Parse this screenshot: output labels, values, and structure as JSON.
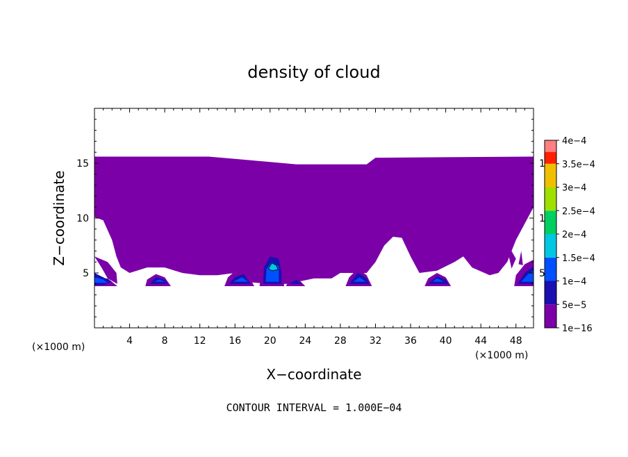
{
  "chart_data": {
    "type": "heatmap",
    "title": "density of cloud",
    "xlabel": "X−coordinate",
    "ylabel": "Z−coordinate",
    "x_unit": "(×1000 m)",
    "y_unit": "(×1000 m)",
    "xlim": [
      0,
      50
    ],
    "ylim": [
      0,
      20
    ],
    "x_ticks": [
      4,
      8,
      12,
      16,
      20,
      24,
      28,
      32,
      36,
      40,
      44,
      48
    ],
    "x_tick_labels": [
      "4",
      "8",
      "12",
      "16",
      "20",
      "24",
      "28",
      "32",
      "36",
      "40",
      "44",
      "48"
    ],
    "y_ticks": [
      5,
      10,
      15
    ],
    "y_tick_labels": [
      "5",
      "10",
      "15"
    ],
    "colorbar": {
      "levels": [
        1e-16,
        5e-05,
        0.0001,
        0.00015,
        0.0002,
        0.00025,
        0.0003,
        0.00035,
        0.0004
      ],
      "labels": [
        "1e−16",
        "5e−5",
        "1e−4",
        "1.5e−4",
        "2e−4",
        "2.5e−4",
        "3e−4",
        "3.5e−4",
        "4e−4"
      ],
      "colors": [
        "#7b00a8",
        "#1a0fb0",
        "#0050ff",
        "#00c8e0",
        "#00d060",
        "#a0e000",
        "#f0c000",
        "#ff2000",
        "#ff8080"
      ]
    },
    "contour_interval_text": "CONTOUR INTERVAL = 1.000E−04",
    "regions": [
      {
        "level": 0,
        "polygon": [
          [
            0,
            15.6
          ],
          [
            11,
            15.6
          ],
          [
            13,
            15.6
          ],
          [
            16,
            15.4
          ],
          [
            23,
            14.9
          ],
          [
            31,
            14.9
          ],
          [
            32,
            15.5
          ],
          [
            50,
            15.6
          ],
          [
            50,
            11
          ],
          [
            48,
            8
          ],
          [
            47,
            6
          ],
          [
            46,
            5
          ],
          [
            45,
            4.8
          ],
          [
            43,
            5.5
          ],
          [
            42,
            6.5
          ],
          [
            41,
            6
          ],
          [
            39,
            5.2
          ],
          [
            37,
            5
          ],
          [
            36,
            6.5
          ],
          [
            35,
            8.2
          ],
          [
            34,
            8.3
          ],
          [
            33,
            7.5
          ],
          [
            32,
            6
          ],
          [
            31,
            5
          ],
          [
            29,
            5
          ],
          [
            28,
            5
          ],
          [
            27,
            4.5
          ],
          [
            25,
            4.5
          ],
          [
            22,
            4
          ],
          [
            20,
            4
          ],
          [
            17,
            4.2
          ],
          [
            16,
            5
          ],
          [
            14,
            4.8
          ],
          [
            12,
            4.8
          ],
          [
            10,
            5
          ],
          [
            8,
            5.5
          ],
          [
            6,
            5.5
          ],
          [
            4,
            5
          ],
          [
            3,
            5.5
          ],
          [
            2.5,
            6.5
          ],
          [
            2,
            8
          ],
          [
            1,
            9.8
          ],
          [
            0,
            10.1
          ]
        ]
      },
      {
        "level": 0,
        "polygon": [
          [
            28.3,
            9.6
          ],
          [
            29.5,
            9.6
          ],
          [
            29.6,
            7
          ],
          [
            29,
            6
          ],
          [
            28,
            6
          ],
          [
            28,
            7
          ]
        ]
      },
      {
        "level": 0,
        "polygon": [
          [
            0,
            6.5
          ],
          [
            0.8,
            5.5
          ],
          [
            1.5,
            4.5
          ],
          [
            2.6,
            4
          ],
          [
            2.5,
            5
          ],
          [
            1.5,
            6
          ]
        ]
      },
      {
        "level": 0,
        "polygon": [
          [
            0,
            4
          ],
          [
            0.5,
            4.5
          ],
          [
            1.5,
            4.5
          ],
          [
            2.6,
            3.8
          ],
          [
            0,
            3.8
          ]
        ]
      },
      {
        "level": 0,
        "polygon": [
          [
            5.8,
            3.8
          ],
          [
            6,
            4.4
          ],
          [
            7,
            4.9
          ],
          [
            8,
            4.6
          ],
          [
            8.7,
            3.8
          ]
        ]
      },
      {
        "level": 0,
        "polygon": [
          [
            14.8,
            3.8
          ],
          [
            15.2,
            4.6
          ],
          [
            16.5,
            5.5
          ],
          [
            17.5,
            4.8
          ],
          [
            18.2,
            3.8
          ]
        ]
      },
      {
        "level": 0,
        "polygon": [
          [
            18.8,
            3.8
          ],
          [
            19,
            5
          ],
          [
            20,
            6.2
          ],
          [
            21,
            6.2
          ],
          [
            21.5,
            5
          ],
          [
            21.6,
            3.8
          ]
        ]
      },
      {
        "level": 0,
        "polygon": [
          [
            21.8,
            3.8
          ],
          [
            22.3,
            4.5
          ],
          [
            23,
            4.6
          ],
          [
            24,
            3.8
          ]
        ]
      },
      {
        "level": 0,
        "polygon": [
          [
            28.6,
            3.8
          ],
          [
            29,
            4.6
          ],
          [
            30,
            5.4
          ],
          [
            31,
            4.8
          ],
          [
            31.6,
            3.8
          ]
        ]
      },
      {
        "level": 0,
        "polygon": [
          [
            37.6,
            3.8
          ],
          [
            38,
            4.5
          ],
          [
            39,
            5
          ],
          [
            40,
            4.6
          ],
          [
            40.6,
            3.8
          ]
        ]
      },
      {
        "level": 0,
        "polygon": [
          [
            47.8,
            3.8
          ],
          [
            48,
            4.8
          ],
          [
            49,
            5.8
          ],
          [
            50,
            6.2
          ],
          [
            50,
            3.8
          ]
        ]
      },
      {
        "level": 0,
        "polygon": [
          [
            47.2,
            6.5
          ],
          [
            47.5,
            7
          ],
          [
            48,
            6.3
          ],
          [
            47.5,
            5.4
          ]
        ]
      },
      {
        "level": 0,
        "polygon": [
          [
            48.3,
            5.8
          ],
          [
            48.6,
            7
          ],
          [
            48.8,
            5.7
          ]
        ]
      },
      {
        "level": 1,
        "polygon": [
          [
            0,
            5
          ],
          [
            1,
            4.6
          ],
          [
            2,
            4.2
          ],
          [
            1,
            3.9
          ],
          [
            0,
            3.9
          ]
        ]
      },
      {
        "level": 1,
        "polygon": [
          [
            6.3,
            4
          ],
          [
            7,
            4.6
          ],
          [
            8,
            4.4
          ],
          [
            8.3,
            4
          ]
        ]
      },
      {
        "level": 1,
        "polygon": [
          [
            15.3,
            4
          ],
          [
            16,
            4.6
          ],
          [
            17,
            4.9
          ],
          [
            17.8,
            4
          ]
        ]
      },
      {
        "level": 1,
        "polygon": [
          [
            19.2,
            4
          ],
          [
            19.3,
            5.5
          ],
          [
            20,
            6.5
          ],
          [
            21,
            6.3
          ],
          [
            21.3,
            5
          ],
          [
            21.3,
            4
          ]
        ]
      },
      {
        "level": 1,
        "polygon": [
          [
            22.2,
            4
          ],
          [
            23,
            4.4
          ],
          [
            23.6,
            4
          ]
        ]
      },
      {
        "level": 1,
        "polygon": [
          [
            29,
            4
          ],
          [
            30,
            5
          ],
          [
            31,
            4.5
          ],
          [
            31.3,
            4
          ]
        ]
      },
      {
        "level": 1,
        "polygon": [
          [
            38,
            4
          ],
          [
            39,
            4.7
          ],
          [
            40,
            4.4
          ],
          [
            40.3,
            4
          ]
        ]
      },
      {
        "level": 1,
        "polygon": [
          [
            48.2,
            4
          ],
          [
            49,
            5
          ],
          [
            50,
            5.6
          ],
          [
            50,
            4
          ]
        ]
      },
      {
        "level": 2,
        "polygon": [
          [
            0,
            4.6
          ],
          [
            1,
            4.4
          ],
          [
            1.5,
            4.1
          ],
          [
            0,
            4.1
          ]
        ]
      },
      {
        "level": 2,
        "polygon": [
          [
            6.8,
            4.2
          ],
          [
            7.4,
            4.4
          ],
          [
            8,
            4.2
          ]
        ]
      },
      {
        "level": 2,
        "polygon": [
          [
            15.8,
            4.2
          ],
          [
            16.8,
            4.6
          ],
          [
            17.5,
            4.2
          ]
        ]
      },
      {
        "level": 2,
        "polygon": [
          [
            19.5,
            4.2
          ],
          [
            19.6,
            5.4
          ],
          [
            20.2,
            6
          ],
          [
            21,
            5.6
          ],
          [
            21,
            4.2
          ]
        ]
      },
      {
        "level": 2,
        "polygon": [
          [
            29.5,
            4.2
          ],
          [
            30.2,
            4.6
          ],
          [
            30.9,
            4.2
          ]
        ]
      },
      {
        "level": 2,
        "polygon": [
          [
            38.5,
            4.2
          ],
          [
            39,
            4.5
          ],
          [
            39.8,
            4.2
          ]
        ]
      },
      {
        "level": 2,
        "polygon": [
          [
            48.6,
            4.2
          ],
          [
            49.4,
            4.9
          ],
          [
            50,
            5.2
          ],
          [
            50,
            4.2
          ]
        ]
      },
      {
        "level": 3,
        "polygon": [
          [
            19.8,
            5.4
          ],
          [
            20.2,
            5.9
          ],
          [
            20.7,
            5.7
          ],
          [
            20.9,
            5.3
          ],
          [
            20.2,
            5.2
          ]
        ]
      }
    ]
  }
}
